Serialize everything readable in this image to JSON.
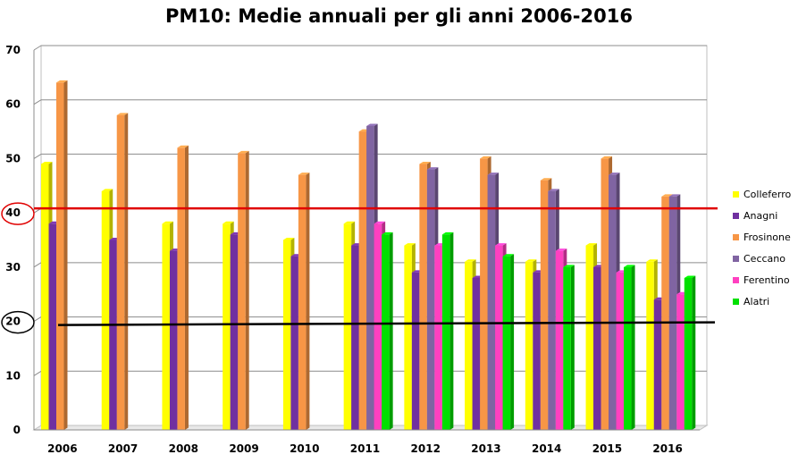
{
  "chart_data": {
    "type": "bar",
    "title": "PM10: Medie annuali per gli anni 2006-2016",
    "xlabel": "",
    "ylabel": "",
    "ylim": [
      0,
      70
    ],
    "yticks": [
      "0",
      "10",
      "20",
      "30",
      "40",
      "50",
      "60",
      "70"
    ],
    "grid": true,
    "legend_position": "right",
    "categories": [
      "2006",
      "2007",
      "2008",
      "2009",
      "2010",
      "2011",
      "2012",
      "2013",
      "2014",
      "2015",
      "2016"
    ],
    "series": [
      {
        "name": "Colleferro",
        "color": "#ffff00",
        "values": [
          49,
          44,
          38,
          38,
          35,
          38,
          34,
          31,
          31,
          34,
          31
        ]
      },
      {
        "name": "Anagni",
        "color": "#7030a0",
        "values": [
          38,
          35,
          33,
          36,
          32,
          34,
          29,
          28,
          29,
          30,
          24
        ]
      },
      {
        "name": "Frosinone",
        "color": "#f79646",
        "values": [
          64,
          58,
          52,
          51,
          47,
          55,
          49,
          50,
          46,
          50,
          43
        ]
      },
      {
        "name": "Ceccano",
        "color": "#8064a2",
        "values": [
          null,
          null,
          null,
          null,
          null,
          56,
          48,
          47,
          44,
          47,
          43
        ]
      },
      {
        "name": "Ferentino",
        "color": "#ff40c0",
        "values": [
          null,
          null,
          null,
          null,
          null,
          38,
          34,
          34,
          33,
          29,
          25
        ]
      },
      {
        "name": "Alatri",
        "color": "#00e000",
        "values": [
          null,
          null,
          null,
          null,
          null,
          36,
          36,
          32,
          30,
          30,
          28
        ]
      }
    ],
    "reference_lines": [
      {
        "value": 40,
        "color": "#e00000"
      },
      {
        "value": 20,
        "color": "#000000"
      }
    ],
    "highlighted_ticks": [
      {
        "value": 40,
        "color": "#e00000"
      },
      {
        "value": 20,
        "color": "#000000"
      }
    ]
  }
}
